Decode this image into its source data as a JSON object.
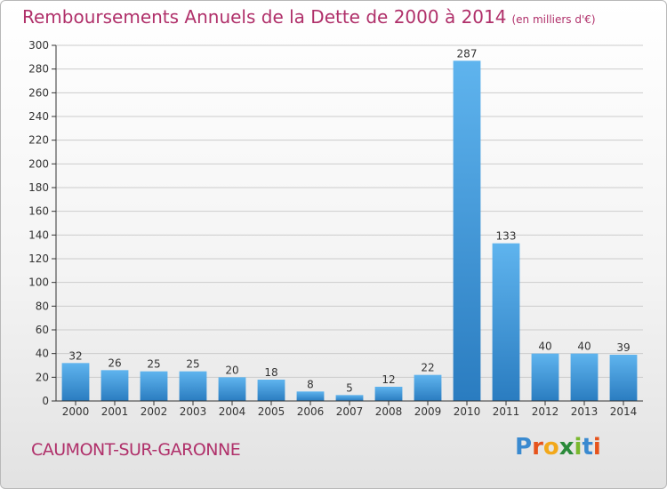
{
  "title": "Remboursements Annuels de la Dette de 2000 à 2014",
  "subtitle": "(en milliers d'€)",
  "commune": "CAUMONT-SUR-GARONNE",
  "logo": {
    "text": "Proxiti",
    "letters": [
      "P",
      "r",
      "o",
      "x",
      "i",
      "t",
      "i"
    ]
  },
  "colors": {
    "title": "#b0306a",
    "bar_light": "#5fb4ee",
    "bar_dark": "#2a7cc0",
    "axis": "#333333",
    "grid": "#cccccc"
  },
  "chart_data": {
    "type": "bar",
    "categories": [
      "2000",
      "2001",
      "2002",
      "2003",
      "2004",
      "2005",
      "2006",
      "2007",
      "2008",
      "2009",
      "2010",
      "2011",
      "2012",
      "2013",
      "2014"
    ],
    "values": [
      32,
      26,
      25,
      25,
      20,
      18,
      8,
      5,
      12,
      22,
      287,
      133,
      40,
      40,
      39
    ],
    "ylim": [
      0,
      300
    ],
    "yticks": [
      0,
      20,
      40,
      60,
      80,
      100,
      120,
      140,
      160,
      180,
      200,
      220,
      240,
      260,
      280,
      300
    ],
    "grid": "horizontal",
    "data_labels": true,
    "legend": "none"
  }
}
